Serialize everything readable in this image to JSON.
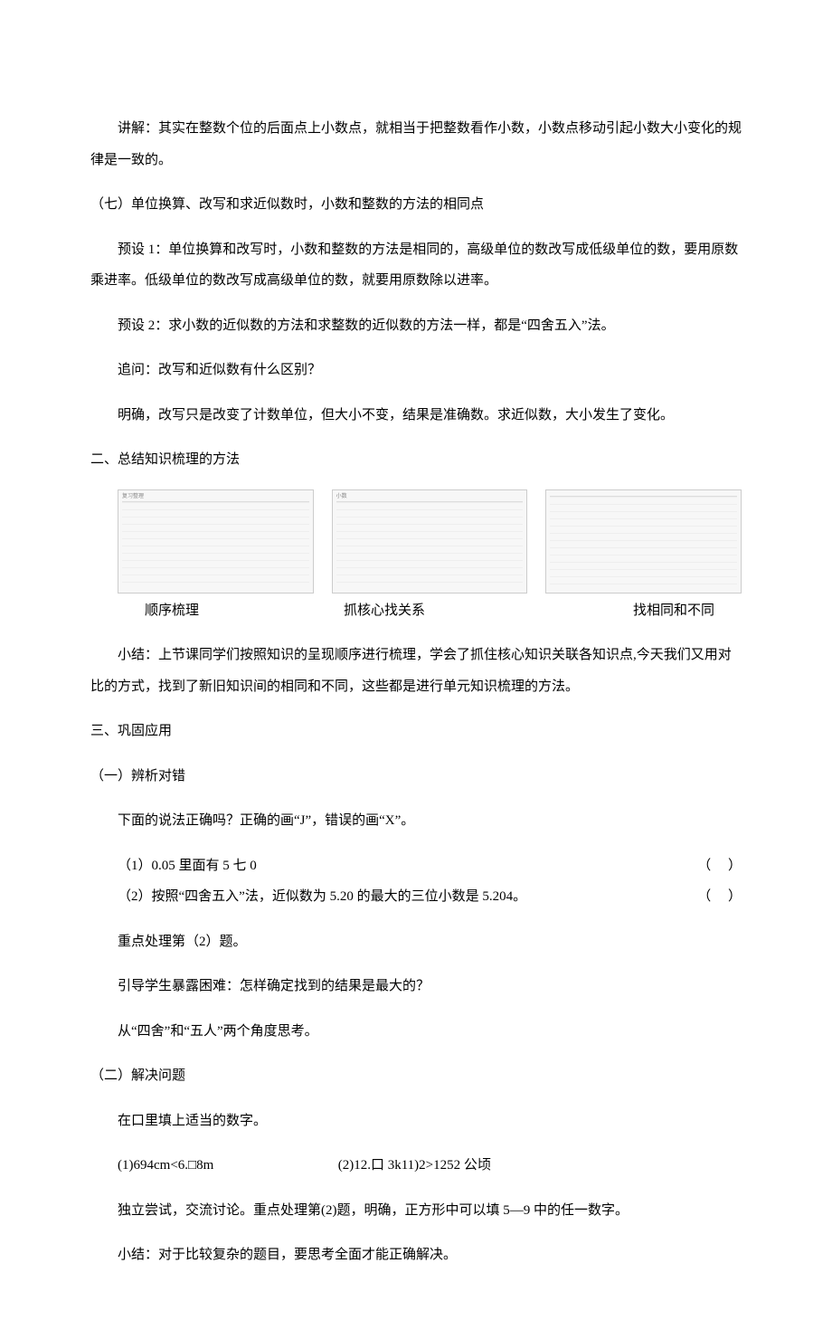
{
  "p1": "讲解：其实在整数个位的后面点上小数点，就相当于把整数看作小数，小数点移动引起小数大小变化的规律是一致的。",
  "h_seven": "（七）单位换算、改写和求近似数时，小数和整数的方法的相同点",
  "p2": "预设 1：单位换算和改写时，小数和整数的方法是相同的，高级单位的数改写成低级单位的数，要用原数乘进率。低级单位的数改写成高级单位的数，就要用原数除以进率。",
  "p3": "预设 2：求小数的近似数的方法和求整数的近似数的方法一样，都是“四舍五入”法。",
  "p4": "追问：改写和近似数有什么区别？",
  "p5": "明确，改写只是改变了计数单位，但大小不变，结果是准确数。求近似数，大小发生了变化。",
  "h_two": "二、总结知识梳理的方法",
  "captions": {
    "c1": "顺序梳理",
    "c2": "抓核心找关系",
    "c3": "找相同和不同"
  },
  "p6": "小结：上节课同学们按照知识的呈现顺序进行梳理，学会了抓住核心知识关联各知识点,今天我们又用对比的方式，找到了新旧知识间的相同和不同，这些都是进行单元知识梳理的方法。",
  "h_three": "三、巩固应用",
  "h_3_1": "（一）辨析对错",
  "p7": "下面的说法正确吗？正确的画“J”，错误的画“X”。",
  "q1_text": "（1）0.05 里面有 5 七 0",
  "q1_paren": "（     ）",
  "q2_text": "（2）按照“四舍五入”法，近似数为 5.20 的最大的三位小数是 5.204。",
  "q2_paren": "（     ）",
  "p8": "重点处理第（2）题。",
  "p9": "引导学生暴露困难：怎样确定找到的结果是最大的？",
  "p10": "从“四舍”和“五人”两个角度思考。",
  "h_3_2": "（二）解决问题",
  "p11": "在口里填上适当的数字。",
  "q3a": "(1)694cm<6.□8m",
  "q3b": "(2)12.口 3k11)2>1252 公顷",
  "p12": "独立尝试，交流讨论。重点处理第(2)题，明确，正方形中可以填 5—9 中的任一数字。",
  "p13": "小结：对于比较复杂的题目，要思考全面才能正确解决。"
}
